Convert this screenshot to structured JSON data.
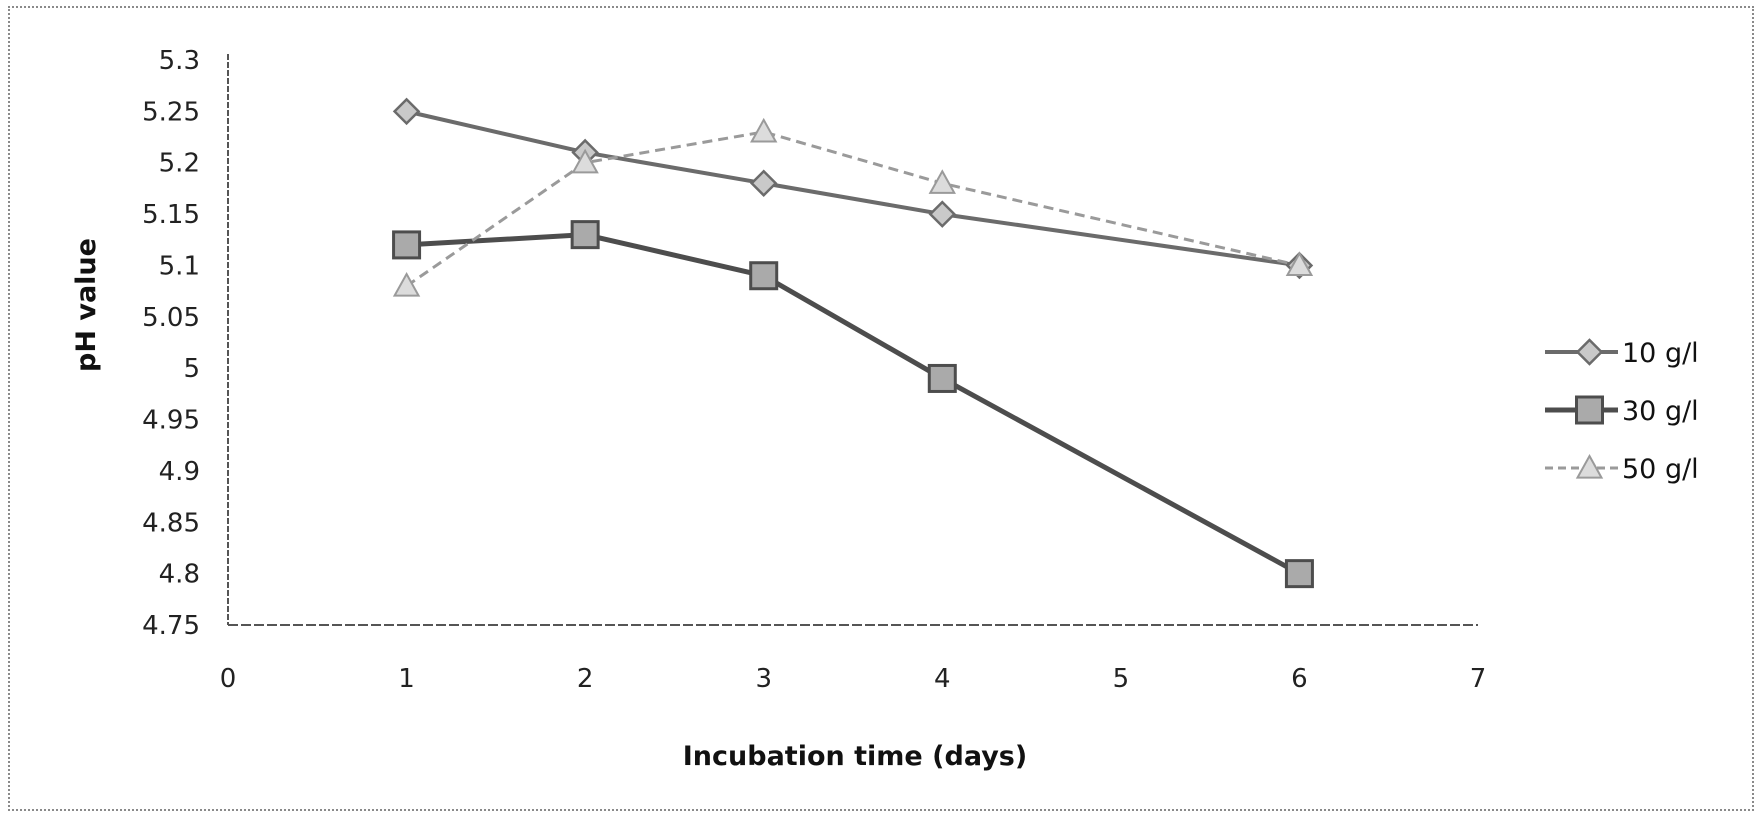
{
  "chart_data": {
    "type": "line",
    "title": "",
    "xlabel": "Incubation time (days)",
    "ylabel": "pH value",
    "xlim": [
      0,
      7
    ],
    "ylim": [
      4.75,
      5.3
    ],
    "x_ticks": [
      "0",
      "1",
      "2",
      "3",
      "4",
      "5",
      "6",
      "7"
    ],
    "y_ticks": [
      "4.75",
      "4.8",
      "4.85",
      "4.9",
      "4.95",
      "5",
      "5.05",
      "5.1",
      "5.15",
      "5.2",
      "5.25",
      "5.3"
    ],
    "x": [
      1,
      2,
      3,
      4,
      6
    ],
    "grid": false,
    "legend_position": "right",
    "series": [
      {
        "name": "10 g/l",
        "marker": "diamond",
        "color": "#6b6b6b",
        "values": [
          5.25,
          5.21,
          5.18,
          5.15,
          5.1
        ]
      },
      {
        "name": "30 g/l",
        "marker": "square",
        "color": "#4d4d4d",
        "values": [
          5.12,
          5.13,
          5.09,
          4.99,
          4.8
        ]
      },
      {
        "name": "50 g/l",
        "marker": "triangle",
        "color": "#9a9a9a",
        "values": [
          5.08,
          5.2,
          5.23,
          5.18,
          5.1
        ]
      }
    ]
  }
}
